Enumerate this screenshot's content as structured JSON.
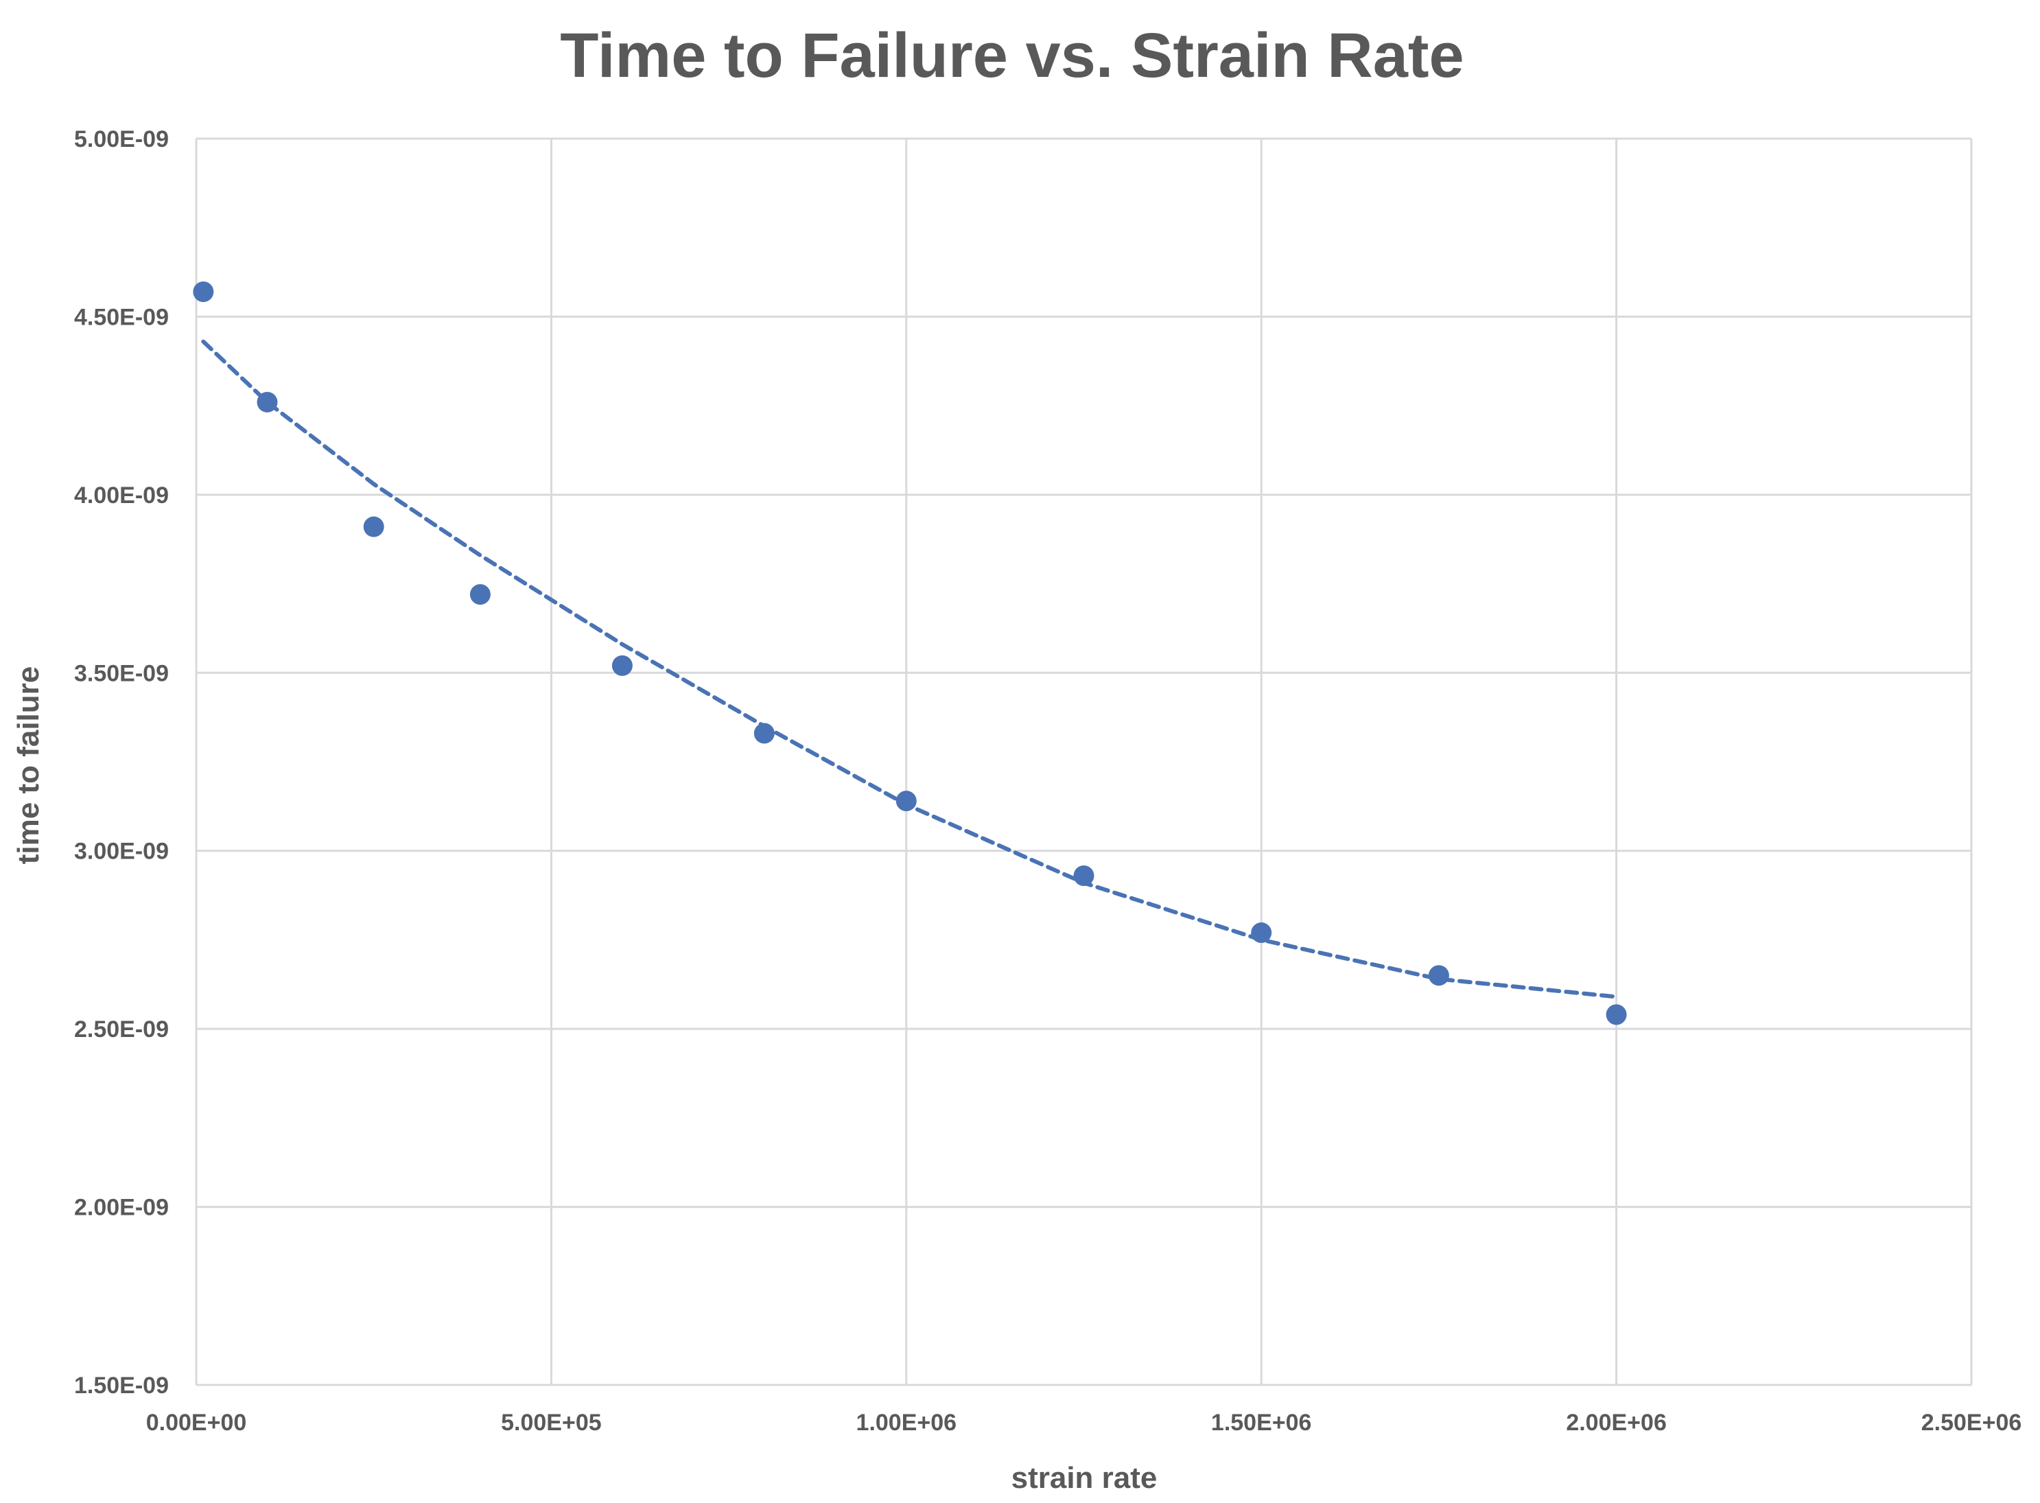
{
  "colors": {
    "marker": "#4a73b5",
    "trendline": "#4a73b5",
    "gridline": "#d9d9d9",
    "text": "#595959"
  },
  "chart_data": {
    "type": "scatter",
    "title": "Time to Failure vs. Strain Rate",
    "xlabel": "strain rate",
    "ylabel": "time to failure",
    "xlim": [
      0,
      2500000
    ],
    "ylim": [
      1.5e-09,
      5e-09
    ],
    "x_ticks": [
      0,
      500000,
      1000000,
      1500000,
      2000000,
      2500000
    ],
    "x_tick_labels": [
      "0.00E+00",
      "5.00E+05",
      "1.00E+06",
      "1.50E+06",
      "2.00E+06",
      "2.50E+06"
    ],
    "y_ticks": [
      1.5e-09,
      2e-09,
      2.5e-09,
      3e-09,
      3.5e-09,
      4e-09,
      4.5e-09,
      5e-09
    ],
    "y_tick_labels": [
      "1.50E-09",
      "2.00E-09",
      "2.50E-09",
      "3.00E-09",
      "3.50E-09",
      "4.00E-09",
      "4.50E-09",
      "5.00E-09"
    ],
    "grid": true,
    "legend": false,
    "series": [
      {
        "x": [
          10000,
          100000,
          250000,
          400000,
          600000,
          800000,
          1000000,
          1250000,
          1500000,
          1750000,
          2000000
        ],
        "y": [
          4.57e-09,
          4.26e-09,
          3.91e-09,
          3.72e-09,
          3.52e-09,
          3.33e-09,
          3.14e-09,
          2.93e-09,
          2.77e-09,
          2.65e-09,
          2.54e-09
        ]
      }
    ],
    "trendline": {
      "type": "polynomial",
      "style": "dashed",
      "x": [
        10000,
        100000,
        250000,
        400000,
        600000,
        800000,
        1000000,
        1250000,
        1500000,
        1750000,
        2000000
      ],
      "y": [
        4.43e-09,
        4.26e-09,
        4.03e-09,
        3.83e-09,
        3.58e-09,
        3.35e-09,
        3.13e-09,
        2.91e-09,
        2.75e-09,
        2.64e-09,
        2.59e-09
      ]
    }
  }
}
